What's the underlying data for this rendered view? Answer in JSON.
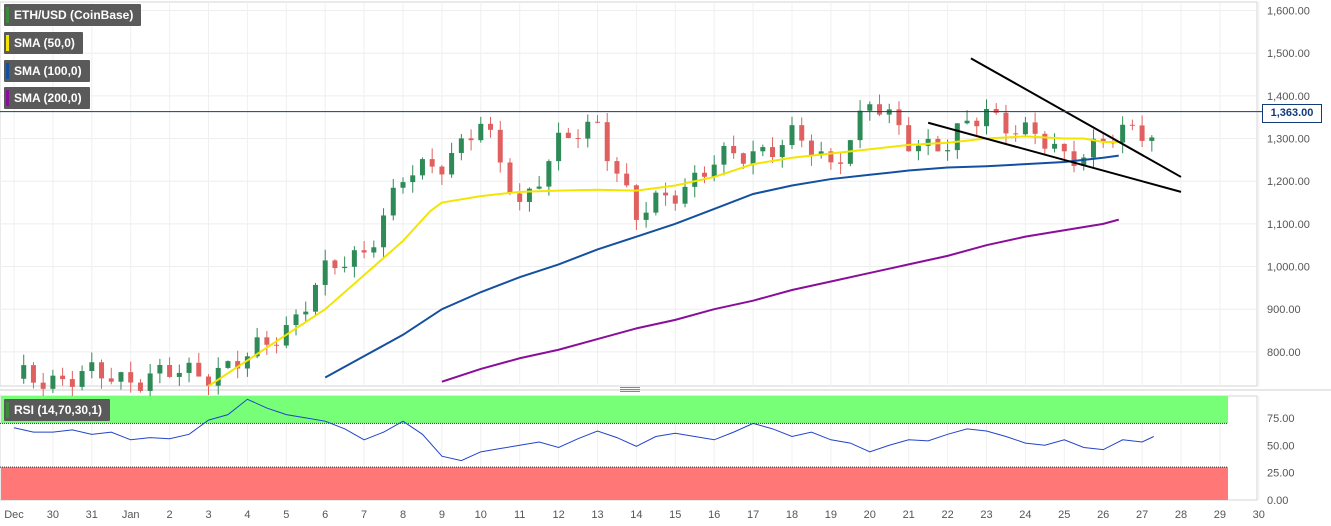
{
  "instrument": {
    "label": "ETH/USD (CoinBase)"
  },
  "indicators": [
    {
      "label": "SMA (50,0)",
      "color": "#f2e600"
    },
    {
      "label": "SMA (100,0)",
      "color": "#1450a0"
    },
    {
      "label": "SMA (200,0)",
      "color": "#8a0e9a"
    }
  ],
  "rsi": {
    "label": "RSI (14,70,30,1)"
  },
  "last_price": "1,363.00",
  "colors": {
    "up": "#2e8b57",
    "down": "#e06060",
    "rsi_line": "#2244cc",
    "overbought_zone": "#77ff77",
    "oversold_zone": "#ff7777"
  },
  "chart_data": {
    "type": "candlestick",
    "x_tick_labels": [
      "Dec",
      "30",
      "31",
      "Jan",
      "2",
      "3",
      "4",
      "5",
      "6",
      "7",
      "8",
      "9",
      "10",
      "11",
      "12",
      "13",
      "14",
      "15",
      "16",
      "17",
      "18",
      "19",
      "20",
      "21",
      "22",
      "23",
      "24",
      "25",
      "26",
      "27",
      "28",
      "29",
      "30"
    ],
    "price_axis": {
      "ticks": [
        "1,600.00",
        "1,500.00",
        "1,400.00",
        "1,300.00",
        "1,200.00",
        "1,100.00",
        "1,000.00",
        "900.00",
        "800.00"
      ],
      "tick_values": [
        1600,
        1500,
        1400,
        1300,
        1200,
        1100,
        1000,
        900,
        800
      ],
      "ylim": [
        720,
        1620
      ]
    },
    "rsi_axis": {
      "ticks": [
        "75.00",
        "50.00",
        "25.00",
        "0.00"
      ],
      "tick_values": [
        75,
        50,
        25,
        0
      ],
      "ylim": [
        0,
        95
      ],
      "overbought": 70,
      "oversold": 30
    },
    "last_price_value": 1363,
    "price_path": [
      [
        0,
        737
      ],
      [
        2,
        742
      ],
      [
        3,
        740
      ],
      [
        4,
        745
      ],
      [
        5,
        755
      ],
      [
        6,
        780
      ],
      [
        7,
        860
      ],
      [
        8,
        980
      ],
      [
        9,
        1040
      ],
      [
        10,
        1200
      ],
      [
        11,
        1250
      ],
      [
        12,
        1330
      ],
      [
        13,
        1150
      ],
      [
        14,
        1280
      ],
      [
        15,
        1340
      ],
      [
        16,
        1110
      ],
      [
        17,
        1180
      ],
      [
        18,
        1240
      ],
      [
        19,
        1270
      ],
      [
        20,
        1300
      ],
      [
        21,
        1240
      ],
      [
        22,
        1380
      ],
      [
        23,
        1300
      ],
      [
        24,
        1280
      ],
      [
        25,
        1370
      ],
      [
        26,
        1310
      ],
      [
        27,
        1260
      ],
      [
        28,
        1290
      ],
      [
        29,
        1320
      ],
      [
        30,
        1310
      ],
      [
        31,
        1360
      ]
    ],
    "sma50": [
      [
        5,
        720
      ],
      [
        6,
        780
      ],
      [
        7,
        840
      ],
      [
        8,
        900
      ],
      [
        9,
        980
      ],
      [
        10,
        1060
      ],
      [
        10.7,
        1130
      ],
      [
        11,
        1150
      ],
      [
        12,
        1165
      ],
      [
        13,
        1175
      ],
      [
        14,
        1178
      ],
      [
        15,
        1180
      ],
      [
        16,
        1178
      ],
      [
        17,
        1190
      ],
      [
        18,
        1210
      ],
      [
        19,
        1240
      ],
      [
        20,
        1255
      ],
      [
        21,
        1265
      ],
      [
        22,
        1275
      ],
      [
        23,
        1285
      ],
      [
        24,
        1290
      ],
      [
        25,
        1300
      ],
      [
        26,
        1305
      ],
      [
        27,
        1300
      ],
      [
        27.5,
        1300
      ],
      [
        28,
        1292
      ],
      [
        28.4,
        1292
      ]
    ],
    "sma100": [
      [
        8,
        740
      ],
      [
        9,
        790
      ],
      [
        10,
        840
      ],
      [
        11,
        900
      ],
      [
        12,
        940
      ],
      [
        13,
        975
      ],
      [
        14,
        1005
      ],
      [
        15,
        1040
      ],
      [
        16,
        1070
      ],
      [
        17,
        1100
      ],
      [
        18,
        1135
      ],
      [
        19,
        1170
      ],
      [
        20,
        1190
      ],
      [
        21,
        1205
      ],
      [
        22,
        1215
      ],
      [
        23,
        1225
      ],
      [
        24,
        1232
      ],
      [
        25,
        1235
      ],
      [
        26,
        1240
      ],
      [
        27,
        1245
      ],
      [
        28,
        1255
      ],
      [
        28.4,
        1260
      ]
    ],
    "sma200": [
      [
        11,
        730
      ],
      [
        12,
        760
      ],
      [
        13,
        785
      ],
      [
        14,
        805
      ],
      [
        15,
        830
      ],
      [
        16,
        855
      ],
      [
        17,
        875
      ],
      [
        18,
        900
      ],
      [
        19,
        920
      ],
      [
        20,
        945
      ],
      [
        21,
        965
      ],
      [
        22,
        985
      ],
      [
        23,
        1005
      ],
      [
        24,
        1025
      ],
      [
        25,
        1050
      ],
      [
        26,
        1070
      ],
      [
        27,
        1085
      ],
      [
        28,
        1100
      ],
      [
        28.4,
        1110
      ]
    ],
    "trendlines": [
      {
        "from": [
          24.6,
          1488
        ],
        "to": [
          30,
          1210
        ]
      },
      {
        "from": [
          23.5,
          1337
        ],
        "to": [
          30,
          1175
        ]
      }
    ],
    "rsi_series": [
      [
        0,
        66
      ],
      [
        0.5,
        62
      ],
      [
        1,
        62
      ],
      [
        1.5,
        64
      ],
      [
        2,
        60
      ],
      [
        2.5,
        62
      ],
      [
        3,
        55
      ],
      [
        3.5,
        57
      ],
      [
        4,
        56
      ],
      [
        4.5,
        60
      ],
      [
        5,
        73
      ],
      [
        5.5,
        78
      ],
      [
        6,
        92
      ],
      [
        6.5,
        84
      ],
      [
        7,
        78
      ],
      [
        7.5,
        75
      ],
      [
        8,
        72
      ],
      [
        8.5,
        65
      ],
      [
        9,
        55
      ],
      [
        9.5,
        62
      ],
      [
        10,
        72
      ],
      [
        10.5,
        60
      ],
      [
        11,
        40
      ],
      [
        11.5,
        36
      ],
      [
        12,
        44
      ],
      [
        12.5,
        47
      ],
      [
        13,
        50
      ],
      [
        13.5,
        53
      ],
      [
        14,
        48
      ],
      [
        14.5,
        56
      ],
      [
        15,
        63
      ],
      [
        15.5,
        57
      ],
      [
        16,
        49
      ],
      [
        16.5,
        58
      ],
      [
        17,
        61
      ],
      [
        17.5,
        58
      ],
      [
        18,
        55
      ],
      [
        18.5,
        62
      ],
      [
        19,
        70
      ],
      [
        19.5,
        65
      ],
      [
        20,
        58
      ],
      [
        20.5,
        62
      ],
      [
        21,
        55
      ],
      [
        21.5,
        52
      ],
      [
        22,
        44
      ],
      [
        22.5,
        50
      ],
      [
        23,
        55
      ],
      [
        23.5,
        54
      ],
      [
        24,
        60
      ],
      [
        24.5,
        65
      ],
      [
        25,
        63
      ],
      [
        25.5,
        58
      ],
      [
        26,
        52
      ],
      [
        26.5,
        50
      ],
      [
        27,
        55
      ],
      [
        27.5,
        48
      ],
      [
        28,
        46
      ],
      [
        28.5,
        55
      ],
      [
        29,
        53
      ],
      [
        29.3,
        58
      ]
    ]
  }
}
